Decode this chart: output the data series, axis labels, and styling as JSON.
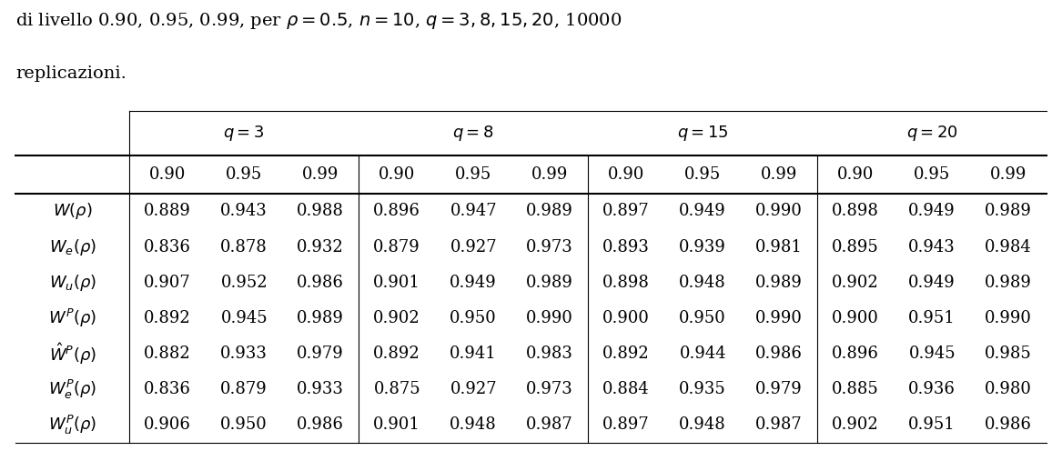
{
  "title_line1": "di livello 0.90, 0.95, 0.99, per $\\rho = 0.5$, $n = 10$, $q = 3, 8, 15, 20$, 10000",
  "title_line2": "replicazioni.",
  "col_groups": [
    "3",
    "8",
    "15",
    "20"
  ],
  "sub_cols": [
    "0.90",
    "0.95",
    "0.99"
  ],
  "row_labels": [
    "$W(\\rho)$",
    "$W_e(\\rho)$",
    "$W_u(\\rho)$",
    "$W^P(\\rho)$",
    "$\\hat{W}^P(\\rho)$",
    "$W_e^P(\\rho)$",
    "$W_u^P(\\rho)$"
  ],
  "data": [
    [
      "0.889",
      "0.943",
      "0.988",
      "0.896",
      "0.947",
      "0.989",
      "0.897",
      "0.949",
      "0.990",
      "0.898",
      "0.949",
      "0.989"
    ],
    [
      "0.836",
      "0.878",
      "0.932",
      "0.879",
      "0.927",
      "0.973",
      "0.893",
      "0.939",
      "0.981",
      "0.895",
      "0.943",
      "0.984"
    ],
    [
      "0.907",
      "0.952",
      "0.986",
      "0.901",
      "0.949",
      "0.989",
      "0.898",
      "0.948",
      "0.989",
      "0.902",
      "0.949",
      "0.989"
    ],
    [
      "0.892",
      "0.945",
      "0.989",
      "0.902",
      "0.950",
      "0.990",
      "0.900",
      "0.950",
      "0.990",
      "0.900",
      "0.951",
      "0.990"
    ],
    [
      "0.882",
      "0.933",
      "0.979",
      "0.892",
      "0.941",
      "0.983",
      "0.892",
      "0.944",
      "0.986",
      "0.896",
      "0.945",
      "0.985"
    ],
    [
      "0.836",
      "0.879",
      "0.933",
      "0.875",
      "0.927",
      "0.973",
      "0.884",
      "0.935",
      "0.979",
      "0.885",
      "0.936",
      "0.980"
    ],
    [
      "0.906",
      "0.950",
      "0.986",
      "0.901",
      "0.948",
      "0.987",
      "0.897",
      "0.948",
      "0.987",
      "0.902",
      "0.951",
      "0.986"
    ]
  ],
  "background_color": "#ffffff",
  "font_size": 13,
  "title_font_size": 14
}
